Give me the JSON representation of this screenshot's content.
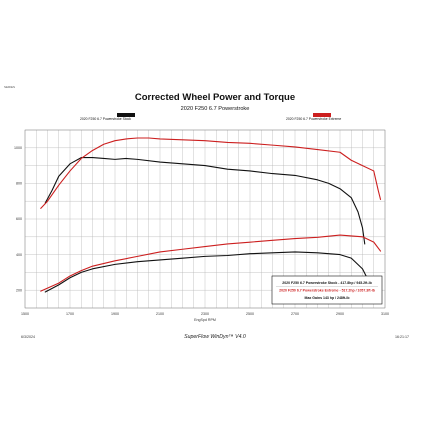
{
  "page": {
    "corner_code": "SERIES",
    "footer_date": "6/3/2024",
    "footer_software": "SuperFlow WinDyn™ V4.0",
    "footer_time": "16:21:17"
  },
  "legend": {
    "stock_label": "2020 F250 6.7 Powerstroke Stock",
    "extreme_label": "2020 F250 6.7 Powerstroke Extreme"
  },
  "summary_box": {
    "stock_line": "2020 F250 6.7 Powerstroke Stock - 417.8hp / 945.2ft-lb",
    "extreme_line": "2020 F250 6.7 Powerstroke Extreme - 517.2hp / 1057.3ft-lb",
    "gains_line": "Max Gains 143 hp / 248ft-lb"
  },
  "colors": {
    "stock": "#111111",
    "extreme": "#cc1f1f",
    "grid": "#b5b5b5"
  },
  "chart_data": {
    "type": "line",
    "title": "Corrected Wheel Power and Torque",
    "subtitle": "2020 F250 6.7 Powerstroke",
    "xlabel": "EngSpd RPM",
    "ylabel": "",
    "xlim": [
      1500,
      3100
    ],
    "ylim": [
      100,
      1100
    ],
    "x_ticks": [
      "1500",
      "1700",
      "1900",
      "2100",
      "2300",
      "2500",
      "2700",
      "2900",
      "3100"
    ],
    "y_ticks": [
      "1000",
      "800",
      "600",
      "400",
      "200"
    ],
    "grid": true,
    "series": [
      {
        "name": "2020 F250 6.7 Powerstroke Stock",
        "metric": "torque",
        "color": "#111111",
        "points": [
          [
            1590,
            690
          ],
          [
            1620,
            760
          ],
          [
            1650,
            840
          ],
          [
            1700,
            910
          ],
          [
            1750,
            945
          ],
          [
            1800,
            945
          ],
          [
            1850,
            940
          ],
          [
            1900,
            935
          ],
          [
            1950,
            940
          ],
          [
            2000,
            935
          ],
          [
            2100,
            920
          ],
          [
            2200,
            910
          ],
          [
            2300,
            900
          ],
          [
            2400,
            880
          ],
          [
            2500,
            870
          ],
          [
            2600,
            855
          ],
          [
            2700,
            845
          ],
          [
            2800,
            820
          ],
          [
            2850,
            800
          ],
          [
            2900,
            770
          ],
          [
            2950,
            720
          ],
          [
            2980,
            640
          ],
          [
            3000,
            550
          ],
          [
            3010,
            460
          ]
        ]
      },
      {
        "name": "2020 F250 6.7 Powerstroke Extreme",
        "metric": "torque",
        "color": "#cc1f1f",
        "points": [
          [
            1570,
            660
          ],
          [
            1600,
            700
          ],
          [
            1650,
            790
          ],
          [
            1700,
            870
          ],
          [
            1750,
            940
          ],
          [
            1800,
            985
          ],
          [
            1850,
            1020
          ],
          [
            1900,
            1040
          ],
          [
            1950,
            1050
          ],
          [
            2000,
            1055
          ],
          [
            2050,
            1055
          ],
          [
            2100,
            1050
          ],
          [
            2200,
            1045
          ],
          [
            2300,
            1040
          ],
          [
            2400,
            1030
          ],
          [
            2500,
            1025
          ],
          [
            2600,
            1015
          ],
          [
            2700,
            1005
          ],
          [
            2800,
            990
          ],
          [
            2900,
            975
          ],
          [
            2950,
            930
          ],
          [
            3000,
            900
          ],
          [
            3050,
            870
          ],
          [
            3070,
            760
          ],
          [
            3080,
            710
          ]
        ]
      },
      {
        "name": "2020 F250 6.7 Powerstroke Stock",
        "metric": "power",
        "color": "#111111",
        "points": [
          [
            1590,
            190
          ],
          [
            1650,
            230
          ],
          [
            1700,
            270
          ],
          [
            1750,
            300
          ],
          [
            1800,
            320
          ],
          [
            1900,
            345
          ],
          [
            2000,
            360
          ],
          [
            2100,
            370
          ],
          [
            2200,
            380
          ],
          [
            2300,
            390
          ],
          [
            2400,
            395
          ],
          [
            2500,
            405
          ],
          [
            2600,
            410
          ],
          [
            2700,
            415
          ],
          [
            2800,
            410
          ],
          [
            2900,
            400
          ],
          [
            2950,
            380
          ],
          [
            3000,
            320
          ],
          [
            3020,
            270
          ]
        ]
      },
      {
        "name": "2020 F250 6.7 Powerstroke Extreme",
        "metric": "power",
        "color": "#cc1f1f",
        "points": [
          [
            1570,
            195
          ],
          [
            1650,
            240
          ],
          [
            1700,
            280
          ],
          [
            1750,
            310
          ],
          [
            1800,
            335
          ],
          [
            1900,
            365
          ],
          [
            2000,
            390
          ],
          [
            2100,
            415
          ],
          [
            2200,
            430
          ],
          [
            2300,
            445
          ],
          [
            2400,
            460
          ],
          [
            2500,
            470
          ],
          [
            2600,
            480
          ],
          [
            2700,
            490
          ],
          [
            2800,
            497
          ],
          [
            2900,
            510
          ],
          [
            2950,
            505
          ],
          [
            3000,
            500
          ],
          [
            3050,
            470
          ],
          [
            3080,
            420
          ]
        ]
      }
    ]
  }
}
